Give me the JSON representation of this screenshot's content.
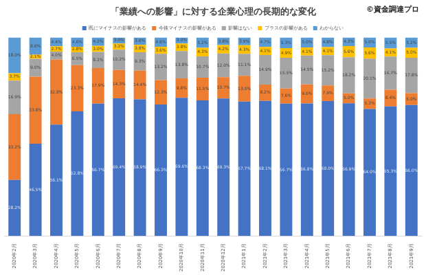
{
  "chart_data": {
    "type": "bar",
    "title": "「業績への影響」に対する企業心理の長期的な変化",
    "annotation": "©資金調達プロ",
    "stacked": true,
    "data_labels": true,
    "legend": "top",
    "grid": false,
    "tick_labels": "x",
    "ylim": [
      0,
      100
    ],
    "categories": [
      "2020年2月",
      "2020年3月",
      "2020年4月",
      "2020年5月",
      "2020年6月",
      "2020年7月",
      "2020年8月",
      "2020年9月",
      "2020年10月",
      "2020年11月",
      "2020年12月",
      "2021年1月",
      "2021年2月",
      "2021年3月",
      "2021年4月",
      "2021年5月",
      "2021年6月",
      "2021年7月",
      "2021年8月",
      "2021年9月"
    ],
    "series": [
      {
        "name": "既にマイナスの影響がある",
        "color": "#4472c4",
        "values": [
          28.2,
          46.5,
          56.1,
          62.8,
          66.7,
          69.4,
          68.9,
          66.3,
          69.6,
          68.3,
          69.3,
          67.7,
          68.1,
          66.7,
          66.8,
          68.0,
          66.9,
          64.0,
          65.3,
          66.0
        ],
        "value_labels": [
          "28.2%",
          "46.5%",
          "56.1%",
          "62.8%",
          "66.7%",
          "69.4%",
          "68.9%",
          "66.3%",
          "69.6%",
          "68.3%",
          "69.3%",
          "67.7%",
          "68.1%",
          "66.7%",
          "66.8%",
          "68.0%",
          "66.9%",
          "64.0%",
          "65.3%",
          "66.0%"
        ]
      },
      {
        "name": "今後マイナスの影響がある",
        "color": "#ed7d31",
        "values": [
          33.2,
          33.8,
          32.8,
          23.3,
          17.9,
          14.3,
          14.4,
          12.3,
          9.8,
          11.5,
          10.7,
          13.0,
          8.2,
          7.6,
          9.6,
          7.9,
          5.0,
          5.3,
          8.4,
          6.0
        ],
        "value_labels": [
          "33.2%",
          "33.8%",
          "32.8%",
          "23.3%",
          "17.9%",
          "14.3%",
          "14.4%",
          "12.3%",
          "9.8%",
          "11.5%",
          "10.7%",
          "13.0%",
          "8.2%",
          "7.6%",
          "9.6%",
          "7.9%",
          "5.0%",
          "5.3%",
          "8.4%",
          "6.0%"
        ]
      },
      {
        "name": "影響はない",
        "color": "#a5a5a5",
        "values": [
          16.9,
          9.0,
          4.0,
          6.5,
          8.2,
          10.2,
          9.3,
          13.2,
          13.8,
          10.7,
          12.0,
          11.1,
          14.9,
          15.5,
          14.5,
          15.2,
          18.2,
          20.1,
          16.7,
          17.8
        ],
        "value_labels": [
          "16.9%",
          "9.0%",
          "4.0%",
          "6.5%",
          "8.2%",
          "10.2%",
          "9.3%",
          "13.2%",
          "13.8%",
          "10.7%",
          "12.0%",
          "11.1%",
          "14.9%",
          "15.5%",
          "14.5%",
          "15.2%",
          "18.2%",
          "20.1%",
          "16.7%",
          "17.8%"
        ]
      },
      {
        "name": "プラスの影響がある",
        "color": "#ffc000",
        "values": [
          3.7,
          2.1,
          2.7,
          2.8,
          3.0,
          3.1,
          3.8,
          3.6,
          3.8,
          4.3,
          4.2,
          4.3,
          4.1,
          4.9,
          4.1,
          4.1,
          5.6,
          5.6,
          4.1,
          5.0
        ],
        "value_labels": [
          "3.7%",
          "2.1%",
          "2.7%",
          "2.8%",
          "3.0%",
          "3.1%",
          "3.8%",
          "3.6%",
          "3.8%",
          "4.3%",
          "4.2%",
          "4.3%",
          "4.1%",
          "4.9%",
          "4.1%",
          "4.1%",
          "5.6%",
          "5.6%",
          "4.1%",
          "5.0%"
        ]
      },
      {
        "name": "わからない",
        "color": "#5b9bd5",
        "values": [
          18.0,
          8.6,
          4.4,
          4.6,
          4.2,
          3.0,
          3.6,
          4.6,
          3.0,
          5.2,
          3.8,
          3.9,
          4.7,
          5.3,
          5.0,
          4.8,
          4.3,
          5.0,
          5.5,
          5.2
        ],
        "value_labels": [
          "18.0%",
          "8.6%",
          "4.4%",
          "4.6%",
          "4.2%",
          "3.0%",
          "3.6%",
          "4.6%",
          "3.0%",
          "5.2%",
          "3.8%",
          "3.9%",
          "4.7%",
          "5.3%",
          "5.0%",
          "4.8%",
          "4.3%",
          "5.0%",
          "5.5%",
          "5.2%"
        ]
      }
    ]
  }
}
